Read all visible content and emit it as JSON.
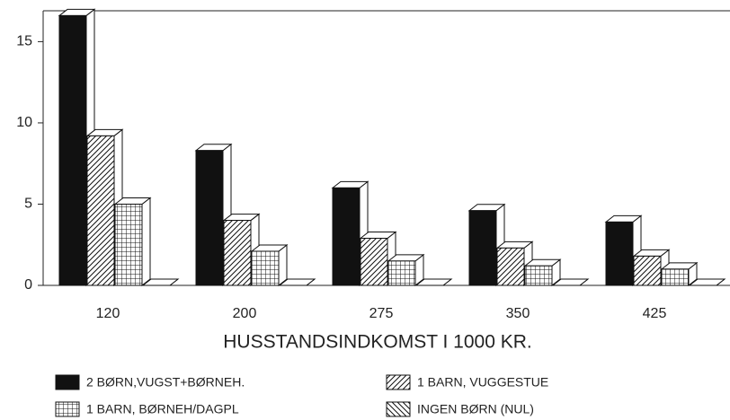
{
  "chart_data": {
    "type": "bar3d",
    "xlabel": "HUSSTANDSINDKOMST I 1000 KR.",
    "categories": [
      "120",
      "200",
      "275",
      "350",
      "425"
    ],
    "series": [
      {
        "name": "2 BØRN,VUGST+BØRNEH.",
        "color": "#111111",
        "pattern": "solid",
        "values": [
          16.6,
          8.3,
          6.0,
          4.6,
          3.9
        ]
      },
      {
        "name": "1 BARN, VUGGESTUE",
        "color": "#111111",
        "pattern": "diagonal",
        "values": [
          9.2,
          4.0,
          2.9,
          2.3,
          1.8
        ]
      },
      {
        "name": "1 BARN, BØRNEH/DAGPL",
        "color": "#111111",
        "pattern": "grid",
        "values": [
          5.0,
          2.1,
          1.5,
          1.2,
          1.0
        ]
      },
      {
        "name": "INGEN BØRN (NUL)",
        "color": "#111111",
        "pattern": "backdiagonal",
        "values": [
          0,
          0,
          0,
          0,
          0
        ]
      }
    ],
    "ylim": [
      0,
      16.9
    ],
    "yticks": [
      0,
      5,
      10,
      15
    ]
  }
}
